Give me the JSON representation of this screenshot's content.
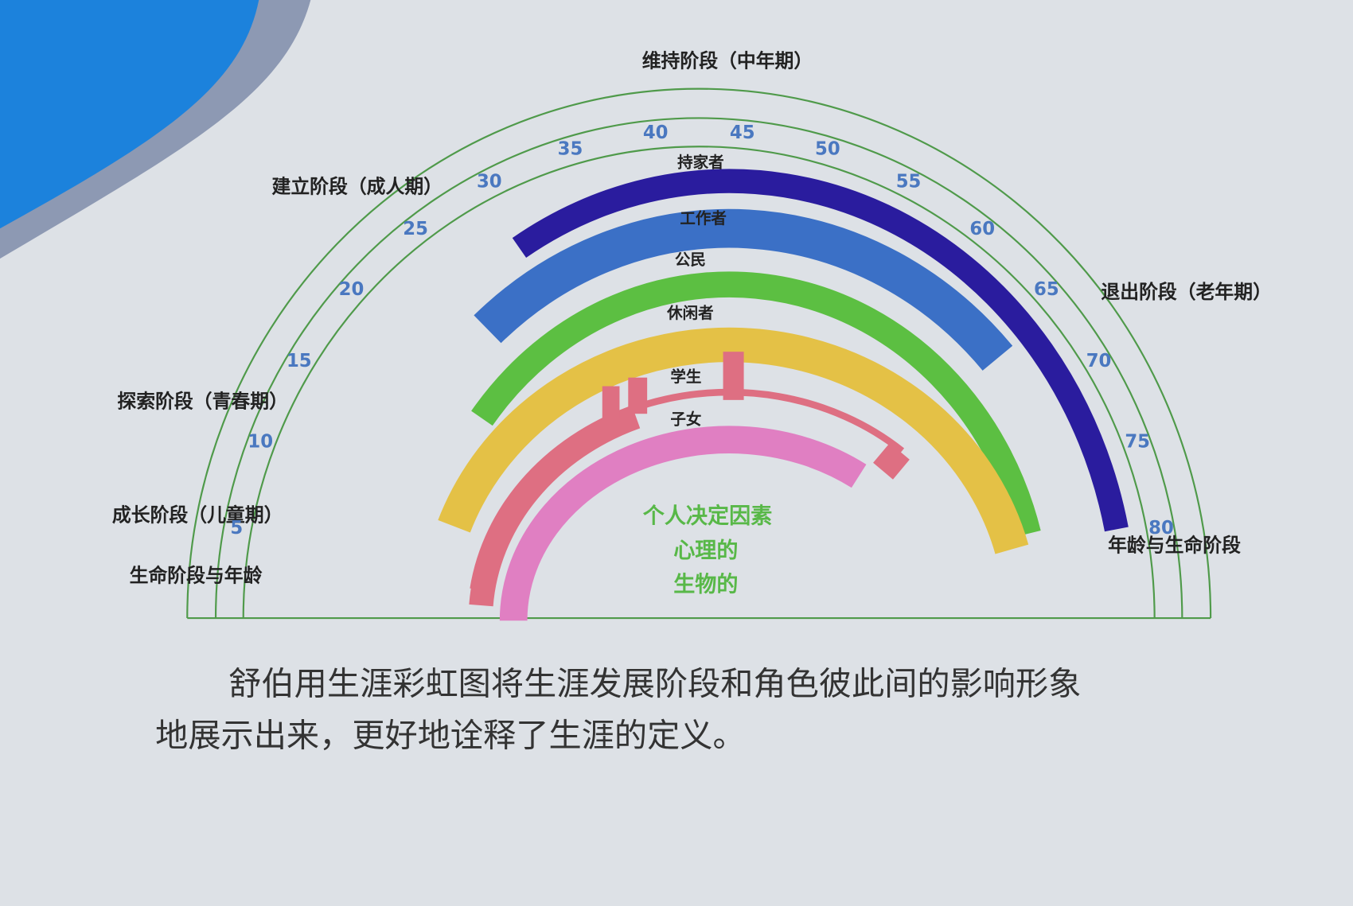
{
  "stages": [
    {
      "label": "维持阶段（中年期）"
    },
    {
      "label": "建立阶段（成人期）"
    },
    {
      "label": "探索阶段（青春期）"
    },
    {
      "label": "成长阶段（儿童期）"
    },
    {
      "label": "生命阶段与年龄"
    },
    {
      "label": "退出阶段（老年期）"
    },
    {
      "label": "年龄与生命阶段"
    }
  ],
  "ages": [
    5,
    10,
    15,
    20,
    25,
    30,
    35,
    40,
    45,
    50,
    55,
    60,
    65,
    70,
    75,
    80
  ],
  "roles": [
    "持家者",
    "工作者",
    "公民",
    "休闲者",
    "学生",
    "子女"
  ],
  "center": [
    "个人决定因素",
    "心理的",
    "生物的"
  ],
  "caption": [
    "舒伯用生涯彩虹图将生涯发展阶段和角色彼此间的影响形象",
    "地展示出来，更好地诠释了生涯的定义。"
  ]
}
